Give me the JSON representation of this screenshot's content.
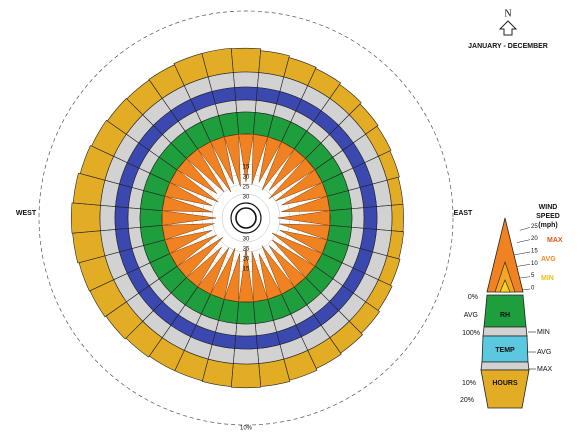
{
  "chart_data": {
    "type": "wind-wheel",
    "title": "JANUARY - DECEMBER",
    "north": "N",
    "west": "WEST",
    "east": "EAST",
    "hours": [
      3.9,
      3.6,
      3.3,
      3.1,
      2.8,
      2.5,
      2.3,
      2.1,
      1.9,
      1.9,
      2.0,
      2.2,
      2.5,
      2.8,
      3.1,
      3.3,
      3.6,
      3.8,
      3.9,
      3.8,
      3.7,
      3.7,
      3.9,
      4.1,
      4.3,
      4.4,
      4.6,
      4.7,
      4.5,
      4.2,
      4.0,
      3.8,
      3.7,
      3.8,
      4.0,
      4.0
    ],
    "hours_color": "#e3ac25",
    "hlim": [
      0,
      10
    ],
    "hticks": [
      {
        "value": 10,
        "label": "10%"
      }
    ],
    "speed_max": [
      24,
      25,
      23,
      26,
      24,
      27,
      25,
      23,
      24,
      26,
      25,
      24,
      27,
      25,
      24,
      26,
      23,
      25,
      27,
      24,
      26,
      25,
      23,
      27,
      25,
      24,
      26,
      27,
      25,
      24,
      26,
      23,
      25,
      27,
      24,
      26
    ],
    "speed_color": "#f08222",
    "slim": [
      0,
      30
    ],
    "sticks": [
      15,
      20,
      25,
      30
    ],
    "legend": {
      "wind_title": [
        "WIND",
        "SPEED",
        "(mph)"
      ],
      "speed_ticks": [
        25,
        20,
        15,
        10,
        5,
        0
      ],
      "max": "MAX",
      "avg": "AVG",
      "min": "MIN",
      "rh": "RH",
      "rh_low": "0%",
      "rh_avg": "AVG",
      "rh_high": "100%",
      "temp": "TEMP",
      "temp_min": "MIN",
      "temp_avg": "AVG",
      "temp_max": "MAX",
      "hours": "HOURS",
      "hours_10": "10%",
      "hours_20": "20%"
    }
  }
}
